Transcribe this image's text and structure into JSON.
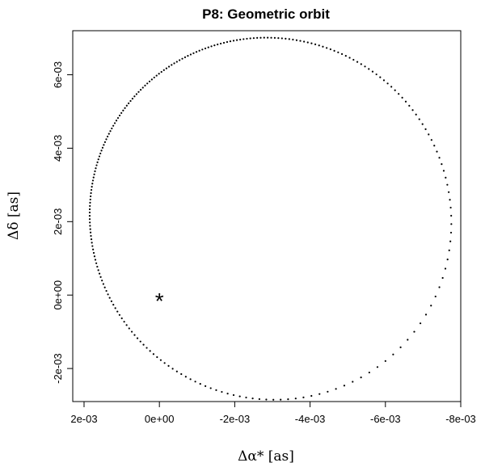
{
  "chart_data": {
    "type": "scatter",
    "title": "P8: Geometric orbit",
    "xlabel": "Δα* [as]",
    "ylabel": "Δδ [as]",
    "x_reversed": true,
    "xlim": [
      0.0023,
      -0.008
    ],
    "ylim": [
      -0.0029,
      0.0072
    ],
    "x_ticks": [
      0.002,
      0.0,
      -0.002,
      -0.004,
      -0.006,
      -0.008
    ],
    "x_tick_labels": [
      "2e-03",
      "0e+00",
      "-2e-03",
      "-4e-03",
      "-6e-03",
      "-8e-03"
    ],
    "y_ticks": [
      -0.002,
      0.0,
      0.002,
      0.004,
      0.006
    ],
    "y_tick_labels": [
      "-2e-03",
      "0e+00",
      "2e-03",
      "4e-03",
      "6e-03"
    ],
    "orbit_ellipse": {
      "center": [
        -0.00295,
        0.00208
      ],
      "semi_axes": [
        0.00478,
        0.00495
      ],
      "rotation_deg": -20,
      "n_points": 240,
      "periapsis_angle_deg": 238
    },
    "star": {
      "x": 0.0,
      "y": 0.0,
      "marker": "*"
    }
  }
}
